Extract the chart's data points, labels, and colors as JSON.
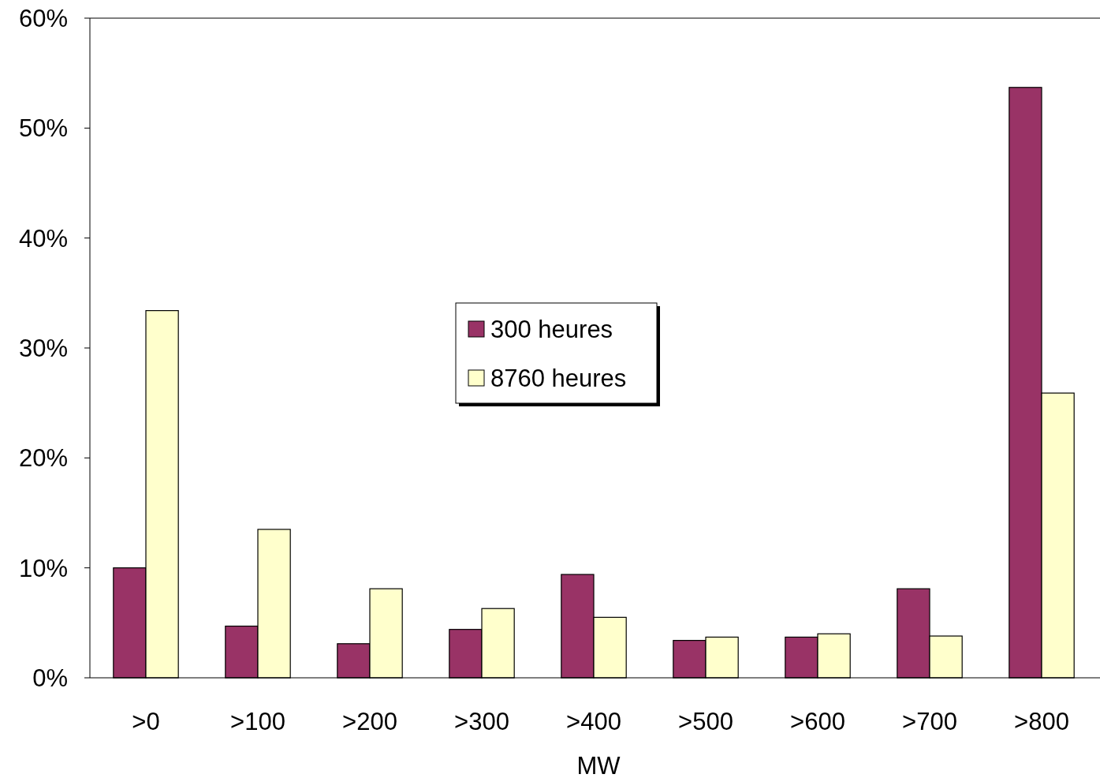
{
  "chart_data": {
    "type": "bar",
    "xlabel": "MW",
    "categories": [
      ">0",
      ">100",
      ">200",
      ">300",
      ">400",
      ">500",
      ">600",
      ">700",
      ">800"
    ],
    "series": [
      {
        "name": "300 heures",
        "color": "#993366",
        "values": [
          10.0,
          4.7,
          3.1,
          4.4,
          9.4,
          3.4,
          3.7,
          8.1,
          53.7
        ]
      },
      {
        "name": "8760 heures",
        "color": "#ffffcc",
        "values": [
          33.4,
          13.5,
          8.1,
          6.3,
          5.5,
          3.7,
          4.0,
          3.8,
          25.9
        ]
      }
    ],
    "ylim": [
      0,
      60
    ],
    "yticks": [
      {
        "value": 0,
        "label": "0%"
      },
      {
        "value": 10,
        "label": "10%"
      },
      {
        "value": 20,
        "label": "20%"
      },
      {
        "value": 30,
        "label": "30%"
      },
      {
        "value": 40,
        "label": "40%"
      },
      {
        "value": 50,
        "label": "50%"
      },
      {
        "value": 60,
        "label": "60%"
      }
    ],
    "legend": "center",
    "grid": false
  }
}
